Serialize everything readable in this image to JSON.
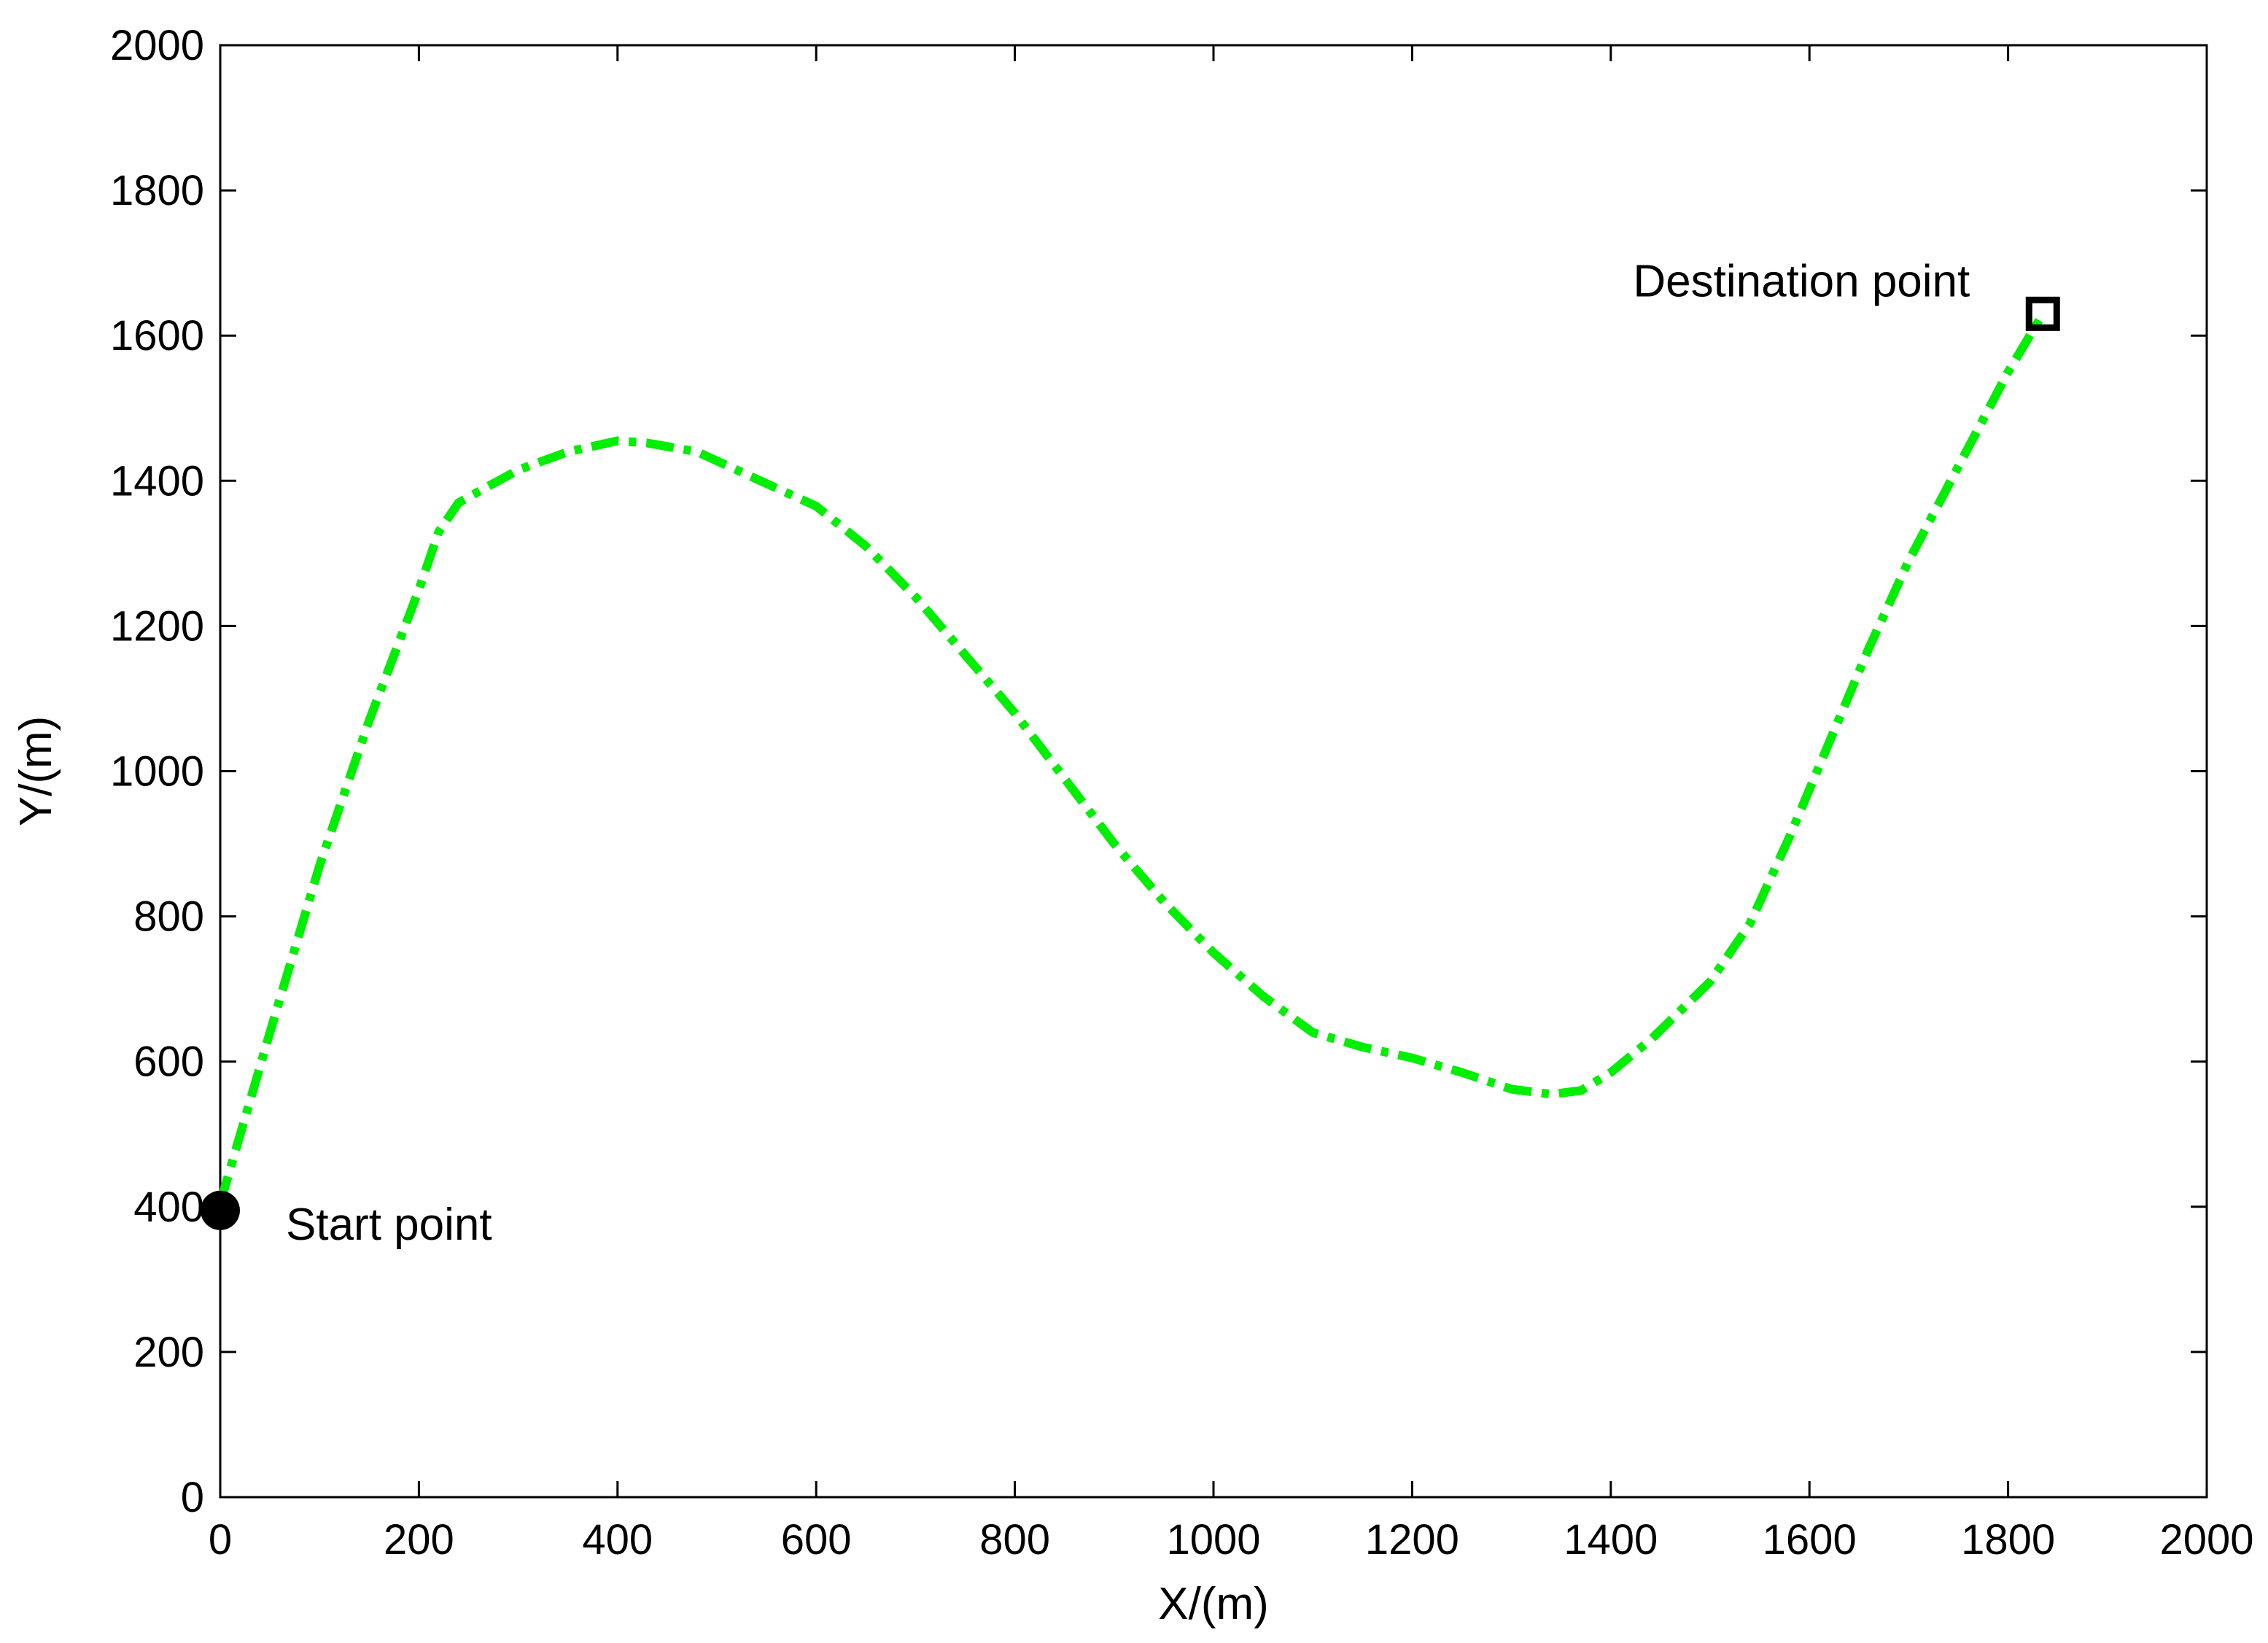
{
  "chart_data": {
    "type": "line",
    "title": "",
    "xlabel": "X/(m)",
    "ylabel": "Y/(m)",
    "xlim": [
      0,
      2000
    ],
    "ylim": [
      0,
      2000
    ],
    "xticks": [
      0,
      200,
      400,
      600,
      800,
      1000,
      1200,
      1400,
      1600,
      1800,
      2000
    ],
    "yticks": [
      0,
      200,
      400,
      600,
      800,
      1000,
      1200,
      1400,
      1600,
      1800,
      2000
    ],
    "grid": false,
    "series": [
      {
        "color": "#00ee00",
        "line_style": "dash-dot",
        "x": [
          0,
          50,
          100,
          150,
          200,
          220,
          240,
          260,
          300,
          350,
          400,
          430,
          480,
          520,
          560,
          600,
          650,
          700,
          750,
          800,
          850,
          900,
          950,
          1000,
          1050,
          1100,
          1150,
          1200,
          1250,
          1300,
          1340,
          1370,
          1400,
          1440,
          1500,
          1540,
          1580,
          1620,
          1660,
          1700,
          1750,
          1800,
          1835
        ],
        "y": [
          405,
          640,
          870,
          1070,
          1250,
          1330,
          1370,
          1385,
          1415,
          1440,
          1455,
          1452,
          1440,
          1415,
          1390,
          1365,
          1310,
          1240,
          1160,
          1080,
          990,
          900,
          820,
          750,
          690,
          640,
          620,
          605,
          585,
          562,
          555,
          560,
          585,
          630,
          710,
          790,
          910,
          1040,
          1170,
          1290,
          1420,
          1550,
          1630
        ]
      }
    ],
    "markers": [
      {
        "name": "Start point",
        "x": 0,
        "y": 395,
        "shape": "filled-circle",
        "color": "#000000"
      },
      {
        "name": "Destination point",
        "x": 1835,
        "y": 1630,
        "shape": "open-square",
        "color": "#000000"
      }
    ]
  }
}
